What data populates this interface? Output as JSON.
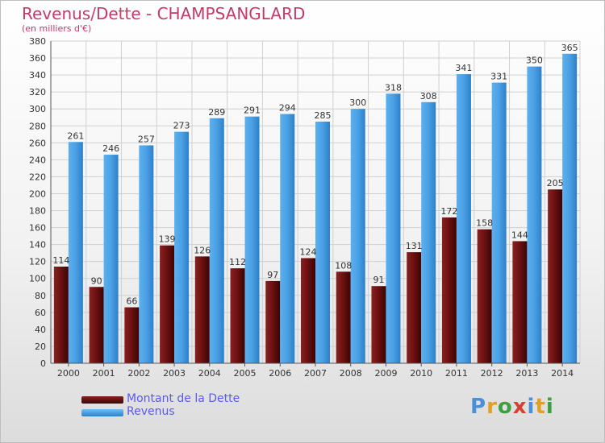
{
  "header": {
    "title": "Revenus/Dette - CHAMPSANGLARD",
    "subtitle": "(en milliers d'€)"
  },
  "legend": {
    "items": [
      {
        "label": "Montant de la Dette",
        "color": "#7a1616"
      },
      {
        "label": "Revenus",
        "color": "#4a9fe0"
      }
    ]
  },
  "logo": {
    "text": "Proxiti",
    "colors": [
      "#4a8fd8",
      "#e0a020",
      "#3aa040",
      "#d84030",
      "#4a8fd8",
      "#e0a020",
      "#3aa040"
    ]
  },
  "chart_data": {
    "type": "bar",
    "categories": [
      "2000",
      "2001",
      "2002",
      "2003",
      "2004",
      "2005",
      "2006",
      "2007",
      "2008",
      "2009",
      "2010",
      "2011",
      "2012",
      "2013",
      "2014"
    ],
    "series": [
      {
        "name": "Montant de la Dette",
        "values": [
          114,
          90,
          66,
          139,
          126,
          112,
          97,
          124,
          108,
          91,
          131,
          172,
          158,
          144,
          205
        ],
        "color": "#7a1616"
      },
      {
        "name": "Revenus",
        "values": [
          261,
          246,
          257,
          273,
          289,
          291,
          294,
          285,
          300,
          318,
          308,
          341,
          331,
          350,
          365
        ],
        "color": "#4a9fe0"
      }
    ],
    "ylim": [
      0,
      380
    ],
    "ytick_step": 20,
    "grid": true,
    "legend_position": "bottom-left"
  }
}
